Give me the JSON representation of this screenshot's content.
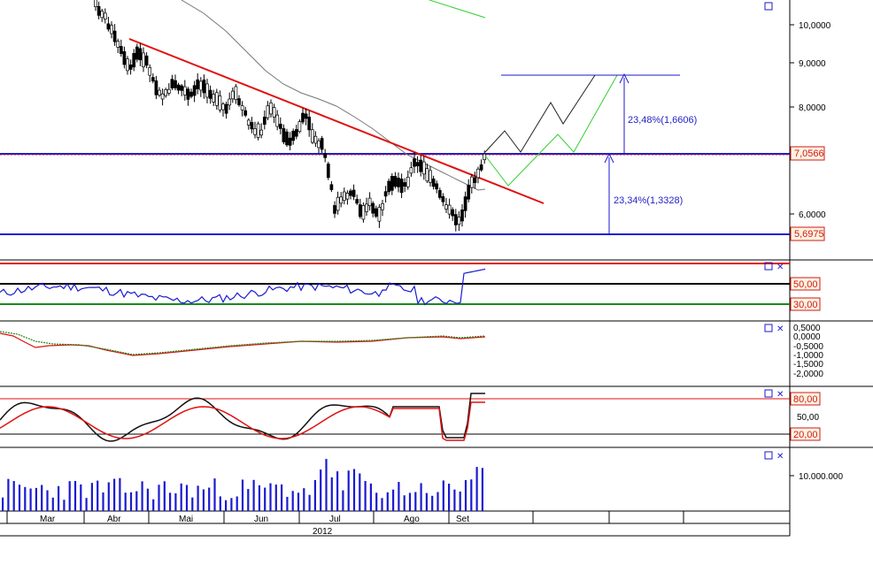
{
  "chart_data": {
    "type": "candlestick",
    "main": {
      "y_ticks": [
        "10,0000",
        "9,0000",
        "8,0000",
        "6,0000"
      ],
      "price_tags": [
        {
          "value": "7,0566",
          "color": "#d01818"
        },
        {
          "value": "5,6975",
          "color": "#d01818"
        }
      ],
      "annotations": [
        "23,48%(1,6606)",
        "23,34%(1,3328)"
      ]
    },
    "rsi": {
      "labels": [
        "50,00",
        "30,00"
      ],
      "levels": [
        70,
        50,
        30
      ]
    },
    "macd": {
      "y_ticks": [
        "0,5000",
        "0,0000",
        "-0,5000",
        "-1,0000",
        "-1,5000",
        "-2,0000"
      ]
    },
    "stochastic": {
      "labels": [
        "80,00",
        "50,00",
        "20,00"
      ],
      "levels": [
        80,
        20
      ]
    },
    "volume": {
      "y_ticks": [
        "10.000.000"
      ]
    },
    "x_axis": {
      "months": [
        "Mar",
        "Abr",
        "Mai",
        "Jun",
        "Jul",
        "Ago",
        "Set"
      ],
      "year": "2012"
    }
  },
  "colors": {
    "bull": "#ffffff",
    "bear": "#000000",
    "trend": "#e01010",
    "blue": "#1a1ad2",
    "green": "#1a8a1a"
  },
  "icons": [
    "window-square-icon",
    "close-x-icon"
  ]
}
